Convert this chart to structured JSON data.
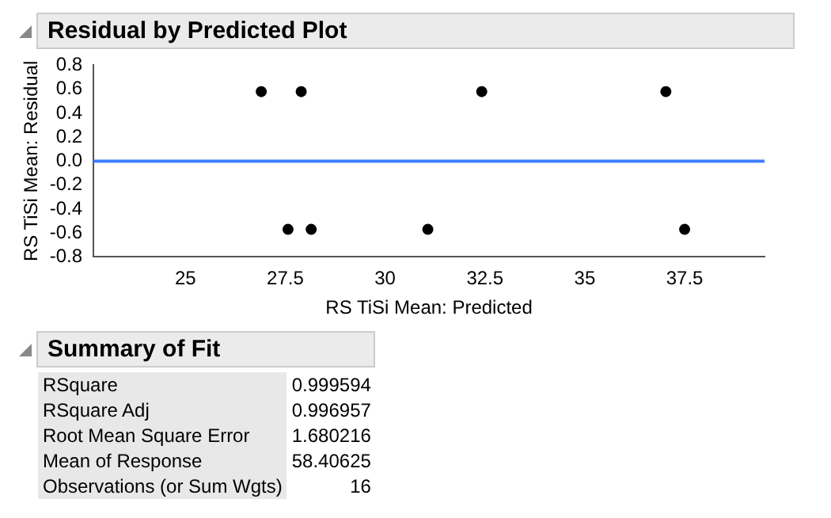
{
  "chart_data": [
    {
      "type": "scatter",
      "title": "Residual by Predicted Plot",
      "xlabel": "RS TiSi Mean: Predicted",
      "ylabel": "RS TiSi Mean: Residual",
      "x": [
        26.9,
        27.57,
        27.9,
        28.15,
        31.07,
        32.42,
        37.03,
        37.5
      ],
      "series": [
        {
          "color": "#000000",
          "values": [
            0.58,
            -0.57,
            0.58,
            -0.57,
            -0.57,
            0.58,
            0.58,
            -0.57
          ]
        }
      ],
      "xlim": [
        22.7,
        39.5
      ],
      "xticks": [
        25,
        27.5,
        30,
        32.5,
        35,
        37.5
      ],
      "ylim": [
        -0.8,
        0.8
      ],
      "yticks": [
        -0.8,
        -0.6,
        -0.4,
        -0.2,
        {
          "value": 0,
          "label": "0.0"
        },
        0.2,
        0.4,
        0.6,
        0.8
      ],
      "ref_lines": [
        {
          "axis": "y",
          "value": 0,
          "color": "#3f7fff"
        }
      ],
      "marker": "circle",
      "grid": false
    },
    {
      "type": "other",
      "title": "Summary of Fit",
      "annotations": [
        "RSquare",
        "0.999594",
        "RSquare Adj",
        "0.996957",
        "Root Mean Square Error",
        "1.680216",
        "Mean of Response",
        "58.40625",
        "Observations (or Sum Wgts)",
        "16"
      ]
    }
  ]
}
